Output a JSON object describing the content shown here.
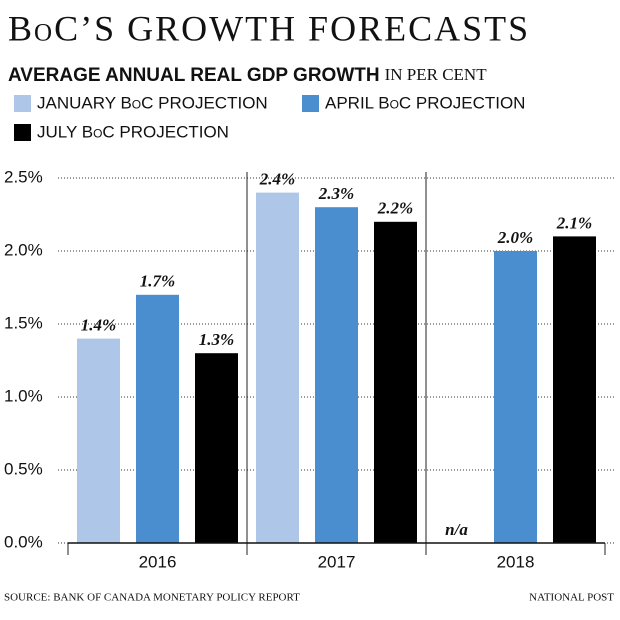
{
  "chart_data": {
    "type": "bar",
    "title": "BoC’S GROWTH FORECASTS",
    "subtitle": "AVERAGE ANNUAL REAL GDP GROWTH",
    "subtitle_unit": "IN PER CENT",
    "categories": [
      "2016",
      "2017",
      "2018"
    ],
    "series": [
      {
        "name": "JANUARY BoC PROJECTION",
        "color": "#aec7e8",
        "values": [
          1.4,
          2.4,
          null
        ],
        "value_labels": [
          "1.4%",
          "2.4%",
          "n/a"
        ]
      },
      {
        "name": "APRIL BoC PROJECTION",
        "color": "#4a8ed0",
        "values": [
          1.7,
          2.3,
          2.0
        ],
        "value_labels": [
          "1.7%",
          "2.3%",
          "2.0%"
        ]
      },
      {
        "name": "JULY BoC PROJECTION",
        "color": "#000000",
        "values": [
          1.3,
          2.2,
          2.1
        ],
        "value_labels": [
          "1.3%",
          "2.2%",
          "2.1%"
        ]
      }
    ],
    "ylim": [
      0,
      2.5
    ],
    "yticks": [
      {
        "value": 0,
        "label": "0.0%"
      },
      {
        "value": 0.5,
        "label": "0.5%"
      },
      {
        "value": 1.0,
        "label": "1.0%"
      },
      {
        "value": 1.5,
        "label": "1.5%"
      },
      {
        "value": 2.0,
        "label": "2.0%"
      },
      {
        "value": 2.5,
        "label": "2.5%"
      }
    ],
    "grid": true,
    "source": "SOURCE: BANK OF CANADA MONETARY POLICY REPORT",
    "credit": "NATIONAL POST"
  }
}
